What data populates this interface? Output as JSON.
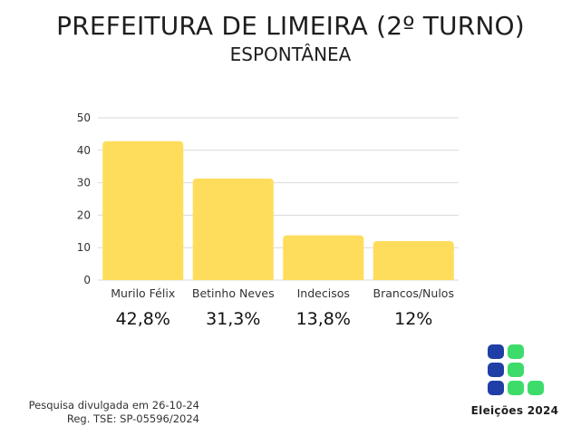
{
  "header": {
    "title": "PREFEITURA DE LIMEIRA (2º TURNO)",
    "subtitle": "ESPONTÂNEA"
  },
  "chart_data": {
    "type": "bar",
    "categories": [
      "Murilo Félix",
      "Betinho Neves",
      "Indecisos",
      "Brancos/Nulos"
    ],
    "values": [
      42.8,
      31.3,
      13.8,
      12
    ],
    "value_labels": [
      "42,8%",
      "31,3%",
      "13,8%",
      "12%"
    ],
    "ylim": [
      0,
      50
    ],
    "yticks": [
      0,
      10,
      20,
      30,
      40,
      50
    ],
    "grid": true,
    "bar_color": "#FFDD5C",
    "grid_color": "#D9D9D9"
  },
  "footer": {
    "note_line1": "Pesquisa divulgada em 26-10-24",
    "note_line2": "Reg. TSE:  SP-05596/2024",
    "logo_text": "Eleições 2024",
    "logo_colors": {
      "blue": "#1F3FA6",
      "green": "#3DDC6A"
    }
  }
}
